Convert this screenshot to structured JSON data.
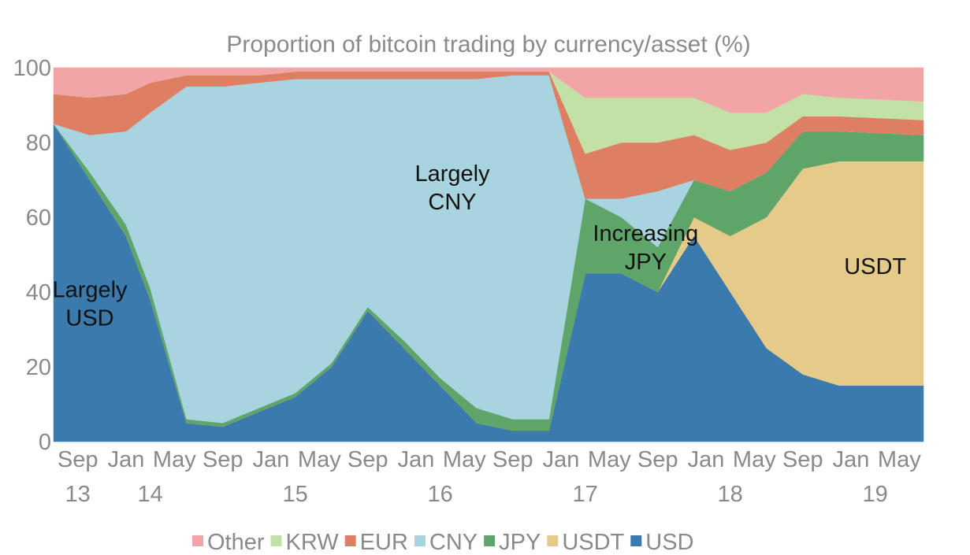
{
  "chart_data": {
    "type": "area",
    "stacked": true,
    "title": "Proportion of bitcoin trading by currency/asset (%)",
    "xlabel": "",
    "ylabel": "",
    "ylim": [
      0,
      100
    ],
    "y_ticks": [
      "0",
      "20",
      "40",
      "60",
      "80",
      "100"
    ],
    "x_ticks": [
      {
        "label": "Sep",
        "date": "2013-09"
      },
      {
        "label": "Jan",
        "date": "2014-01"
      },
      {
        "label": "May",
        "date": "2014-05"
      },
      {
        "label": "Sep",
        "date": "2014-09"
      },
      {
        "label": "Jan",
        "date": "2015-01"
      },
      {
        "label": "May",
        "date": "2015-05"
      },
      {
        "label": "Sep",
        "date": "2015-09"
      },
      {
        "label": "Jan",
        "date": "2016-01"
      },
      {
        "label": "May",
        "date": "2016-05"
      },
      {
        "label": "Sep",
        "date": "2016-09"
      },
      {
        "label": "Jan",
        "date": "2017-01"
      },
      {
        "label": "May",
        "date": "2017-05"
      },
      {
        "label": "Sep",
        "date": "2017-09"
      },
      {
        "label": "Jan",
        "date": "2018-01"
      },
      {
        "label": "May",
        "date": "2018-05"
      },
      {
        "label": "Sep",
        "date": "2018-09"
      },
      {
        "label": "Jan",
        "date": "2019-01"
      },
      {
        "label": "May",
        "date": "2019-05"
      }
    ],
    "year_labels": [
      {
        "label": "13",
        "date": "2013-09"
      },
      {
        "label": "14",
        "date": "2014-03"
      },
      {
        "label": "15",
        "date": "2015-03"
      },
      {
        "label": "16",
        "date": "2016-03"
      },
      {
        "label": "17",
        "date": "2017-03"
      },
      {
        "label": "18",
        "date": "2018-03"
      },
      {
        "label": "19",
        "date": "2019-03"
      }
    ],
    "x_range": [
      "2013-07",
      "2019-07"
    ],
    "legend_position": "bottom",
    "series": [
      {
        "name": "USD",
        "color": "#3a7aad",
        "values": [
          85,
          70,
          55,
          38,
          5,
          4,
          8,
          12,
          20,
          35,
          25,
          15,
          5,
          3,
          3,
          45,
          45,
          40,
          55,
          40,
          25,
          18,
          15,
          15
        ]
      },
      {
        "name": "USDT",
        "color": "#e6ca8a",
        "values": [
          0,
          0,
          0,
          0,
          0,
          0,
          0,
          0,
          0,
          0,
          0,
          0,
          0,
          0,
          0,
          0,
          0,
          0,
          5,
          15,
          35,
          55,
          60,
          60
        ]
      },
      {
        "name": "JPY",
        "color": "#5fa56a",
        "values": [
          0,
          2,
          3,
          3,
          1,
          1,
          1,
          1,
          1,
          1,
          2,
          2,
          4,
          3,
          3,
          20,
          15,
          12,
          10,
          12,
          12,
          10,
          8,
          7
        ]
      },
      {
        "name": "CNY",
        "color": "#a8d4e0",
        "values": [
          0,
          10,
          25,
          47,
          89,
          90,
          87,
          84,
          76,
          61,
          70,
          80,
          88,
          92,
          92,
          0,
          5,
          15,
          0,
          0,
          0,
          0,
          0,
          0
        ]
      },
      {
        "name": "EUR",
        "color": "#de7f63",
        "values": [
          8,
          10,
          10,
          8,
          3,
          3,
          2,
          2,
          2,
          2,
          2,
          2,
          2,
          1,
          1,
          12,
          15,
          13,
          12,
          11,
          8,
          4,
          4,
          4
        ]
      },
      {
        "name": "KRW",
        "color": "#c3e1a6",
        "values": [
          0,
          0,
          0,
          0,
          0,
          0,
          0,
          0,
          0,
          0,
          0,
          0,
          0,
          0,
          0,
          15,
          12,
          12,
          10,
          10,
          8,
          6,
          5,
          5
        ]
      },
      {
        "name": "Other",
        "color": "#f1a5a6",
        "values": [
          7,
          8,
          7,
          4,
          2,
          2,
          2,
          1,
          1,
          1,
          1,
          1,
          1,
          1,
          1,
          8,
          8,
          8,
          8,
          12,
          12,
          7,
          8,
          9
        ]
      }
    ],
    "x": [
      "2013-07",
      "2013-10",
      "2014-01",
      "2014-03",
      "2014-06",
      "2014-09",
      "2014-12",
      "2015-03",
      "2015-06",
      "2015-09",
      "2015-12",
      "2016-03",
      "2016-06",
      "2016-09",
      "2016-12",
      "2017-03",
      "2017-06",
      "2017-09",
      "2017-12",
      "2018-03",
      "2018-06",
      "2018-09",
      "2018-12",
      "2019-07"
    ],
    "annotations": [
      {
        "lines": [
          "Largely",
          "USD"
        ],
        "date": "2013-10",
        "y": 37
      },
      {
        "lines": [
          "Largely",
          "CNY"
        ],
        "date": "2016-04",
        "y": 68
      },
      {
        "lines": [
          "Increasing",
          "JPY"
        ],
        "date": "2017-08",
        "y": 52
      },
      {
        "lines": [
          "USDT"
        ],
        "date": "2019-03",
        "y": 47
      }
    ],
    "legend": [
      "Other",
      "KRW",
      "EUR",
      "CNY",
      "JPY",
      "USDT",
      "USD"
    ]
  }
}
